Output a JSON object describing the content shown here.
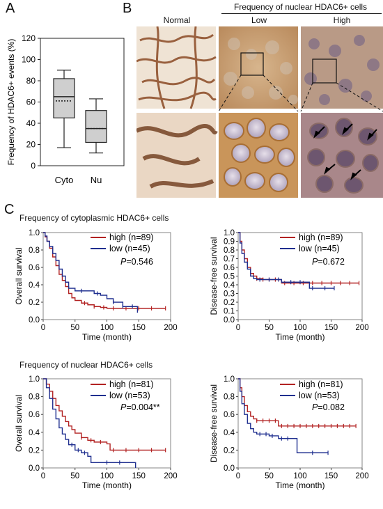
{
  "panel_labels": {
    "a": "A",
    "b": "B",
    "c": "C"
  },
  "panel_b": {
    "header": "Frequency of nuclear HDAC6+ cells",
    "columns": [
      "Normal",
      "Low",
      "High"
    ]
  },
  "panel_c": {
    "group_titles": [
      "Frequency of cytoplasmic HDAC6+ cells",
      "Frequency of nuclear HDAC6+ cells"
    ]
  },
  "chart_data": [
    {
      "id": "box",
      "type": "box",
      "ylabel": "Frequency of HDAC6+ events (%)",
      "ylim": [
        0,
        120
      ],
      "yticks": [
        "0",
        "20",
        "40",
        "60",
        "80",
        "100",
        "120"
      ],
      "categories": [
        "Cyto",
        "Nu"
      ],
      "boxes": [
        {
          "min": 17,
          "q1": 45,
          "median": 65,
          "mean": 61,
          "q3": 82,
          "max": 90
        },
        {
          "min": 12,
          "q1": 22,
          "median": 35,
          "mean": 35,
          "q3": 52,
          "max": 63
        }
      ]
    },
    {
      "id": "c1",
      "type": "line",
      "xlabel": "Time (month)",
      "ylabel": "Overall survival",
      "xlim": [
        0,
        200
      ],
      "ylim": [
        0,
        1.0
      ],
      "xticks": [
        "0",
        "50",
        "100",
        "150",
        "200"
      ],
      "yticks": [
        "0.0",
        "0.2",
        "0.4",
        "0.6",
        "0.8",
        "1.0"
      ],
      "pvalue": "=0.546",
      "series": [
        {
          "name": "high (n=89)",
          "color": "#b22222",
          "points": [
            [
              0,
              1.0
            ],
            [
              3,
              0.95
            ],
            [
              6,
              0.9
            ],
            [
              10,
              0.82
            ],
            [
              15,
              0.72
            ],
            [
              20,
              0.62
            ],
            [
              25,
              0.52
            ],
            [
              30,
              0.45
            ],
            [
              35,
              0.38
            ],
            [
              40,
              0.3
            ],
            [
              45,
              0.25
            ],
            [
              50,
              0.22
            ],
            [
              60,
              0.19
            ],
            [
              70,
              0.17
            ],
            [
              80,
              0.15
            ],
            [
              90,
              0.14
            ],
            [
              100,
              0.13
            ],
            [
              125,
              0.13
            ],
            [
              150,
              0.13
            ],
            [
              192,
              0.13
            ]
          ],
          "censor": [
            65,
            80,
            95,
            110,
            130,
            150,
            170,
            192
          ]
        },
        {
          "name": "low (n=45)",
          "color": "#1f2f8f",
          "points": [
            [
              0,
              1.0
            ],
            [
              3,
              0.96
            ],
            [
              6,
              0.9
            ],
            [
              10,
              0.84
            ],
            [
              15,
              0.76
            ],
            [
              20,
              0.68
            ],
            [
              25,
              0.58
            ],
            [
              30,
              0.5
            ],
            [
              35,
              0.43
            ],
            [
              40,
              0.36
            ],
            [
              50,
              0.33
            ],
            [
              60,
              0.33
            ],
            [
              80,
              0.3
            ],
            [
              90,
              0.28
            ],
            [
              100,
              0.24
            ],
            [
              110,
              0.2
            ],
            [
              125,
              0.15
            ],
            [
              140,
              0.15
            ],
            [
              148,
              0.08
            ]
          ],
          "censor": [
            60,
            85,
            110,
            125,
            140
          ]
        }
      ]
    },
    {
      "id": "c2",
      "type": "line",
      "xlabel": "Time (month)",
      "ylabel": "Disease-free survival",
      "xlim": [
        0,
        200
      ],
      "ylim": [
        0,
        1.0
      ],
      "xticks": [
        "0",
        "50",
        "100",
        "150",
        "200"
      ],
      "yticks": [
        "0.0",
        "0.1",
        "0.2",
        "0.3",
        "0.4",
        "0.5",
        "0.6",
        "0.7",
        "0.8",
        "0.9",
        "1.0"
      ],
      "pvalue": "=0.672",
      "series": [
        {
          "name": "high (n=89)",
          "color": "#b22222",
          "points": [
            [
              0,
              1.0
            ],
            [
              3,
              0.9
            ],
            [
              6,
              0.8
            ],
            [
              10,
              0.7
            ],
            [
              15,
              0.6
            ],
            [
              20,
              0.53
            ],
            [
              25,
              0.5
            ],
            [
              30,
              0.47
            ],
            [
              40,
              0.46
            ],
            [
              60,
              0.46
            ],
            [
              70,
              0.42
            ],
            [
              100,
              0.42
            ],
            [
              150,
              0.42
            ],
            [
              195,
              0.42
            ]
          ],
          "censor": [
            30,
            40,
            50,
            60,
            75,
            90,
            105,
            120,
            135,
            150,
            165,
            180,
            195
          ]
        },
        {
          "name": "low (n=45)",
          "color": "#1f2f8f",
          "points": [
            [
              0,
              1.0
            ],
            [
              3,
              0.88
            ],
            [
              6,
              0.76
            ],
            [
              10,
              0.66
            ],
            [
              15,
              0.58
            ],
            [
              20,
              0.5
            ],
            [
              25,
              0.47
            ],
            [
              30,
              0.46
            ],
            [
              50,
              0.46
            ],
            [
              70,
              0.43
            ],
            [
              110,
              0.43
            ],
            [
              115,
              0.36
            ],
            [
              155,
              0.36
            ]
          ],
          "censor": [
            35,
            50,
            65,
            85,
            100,
            120,
            140,
            155
          ]
        }
      ]
    },
    {
      "id": "c3",
      "type": "line",
      "xlabel": "Time (month)",
      "ylabel": "Overall survival",
      "xlim": [
        0,
        200
      ],
      "ylim": [
        0,
        1.0
      ],
      "xticks": [
        "0",
        "50",
        "100",
        "150",
        "200"
      ],
      "yticks": [
        "0.0",
        "0.2",
        "0.4",
        "0.6",
        "0.8",
        "1.0"
      ],
      "pvalue": "=0.004**",
      "series": [
        {
          "name": "high (n=81)",
          "color": "#b22222",
          "points": [
            [
              0,
              1.0
            ],
            [
              5,
              0.94
            ],
            [
              10,
              0.86
            ],
            [
              15,
              0.78
            ],
            [
              20,
              0.7
            ],
            [
              25,
              0.64
            ],
            [
              30,
              0.58
            ],
            [
              35,
              0.52
            ],
            [
              40,
              0.47
            ],
            [
              45,
              0.43
            ],
            [
              50,
              0.39
            ],
            [
              60,
              0.34
            ],
            [
              70,
              0.31
            ],
            [
              80,
              0.29
            ],
            [
              100,
              0.27
            ],
            [
              105,
              0.2
            ],
            [
              150,
              0.2
            ],
            [
              192,
              0.2
            ]
          ],
          "censor": [
            60,
            75,
            90,
            110,
            130,
            150,
            170,
            192
          ]
        },
        {
          "name": "low (n=53)",
          "color": "#1f2f8f",
          "points": [
            [
              0,
              1.0
            ],
            [
              5,
              0.9
            ],
            [
              10,
              0.78
            ],
            [
              15,
              0.66
            ],
            [
              20,
              0.55
            ],
            [
              25,
              0.45
            ],
            [
              30,
              0.38
            ],
            [
              35,
              0.32
            ],
            [
              40,
              0.26
            ],
            [
              50,
              0.2
            ],
            [
              60,
              0.17
            ],
            [
              70,
              0.13
            ],
            [
              75,
              0.06
            ],
            [
              100,
              0.06
            ],
            [
              145,
              0.06
            ],
            [
              145,
              0.0
            ]
          ],
          "censor": [
            45,
            55,
            65,
            100,
            120
          ]
        }
      ]
    },
    {
      "id": "c4",
      "type": "line",
      "xlabel": "Time (month)",
      "ylabel": "Disease-free survival",
      "xlim": [
        0,
        200
      ],
      "ylim": [
        0,
        1.0
      ],
      "xticks": [
        "0",
        "50",
        "100",
        "150",
        "200"
      ],
      "yticks": [
        "0.0",
        "0.2",
        "0.4",
        "0.6",
        "0.8",
        "1.0"
      ],
      "pvalue": "=0.082",
      "series": [
        {
          "name": "high (n=81)",
          "color": "#b22222",
          "points": [
            [
              0,
              1.0
            ],
            [
              3,
              0.9
            ],
            [
              6,
              0.8
            ],
            [
              10,
              0.7
            ],
            [
              15,
              0.63
            ],
            [
              20,
              0.58
            ],
            [
              25,
              0.55
            ],
            [
              30,
              0.53
            ],
            [
              60,
              0.53
            ],
            [
              65,
              0.47
            ],
            [
              100,
              0.47
            ],
            [
              150,
              0.47
            ],
            [
              190,
              0.47
            ]
          ],
          "censor": [
            30,
            40,
            50,
            60,
            70,
            80,
            90,
            100,
            110,
            120,
            130,
            140,
            150,
            160,
            170,
            180,
            190
          ]
        },
        {
          "name": "low (n=53)",
          "color": "#1f2f8f",
          "points": [
            [
              0,
              1.0
            ],
            [
              3,
              0.86
            ],
            [
              6,
              0.72
            ],
            [
              10,
              0.6
            ],
            [
              15,
              0.5
            ],
            [
              20,
              0.44
            ],
            [
              25,
              0.4
            ],
            [
              30,
              0.38
            ],
            [
              50,
              0.36
            ],
            [
              65,
              0.33
            ],
            [
              90,
              0.33
            ],
            [
              95,
              0.17
            ],
            [
              145,
              0.17
            ]
          ],
          "censor": [
            35,
            45,
            55,
            70,
            80,
            120,
            145
          ]
        }
      ]
    }
  ]
}
